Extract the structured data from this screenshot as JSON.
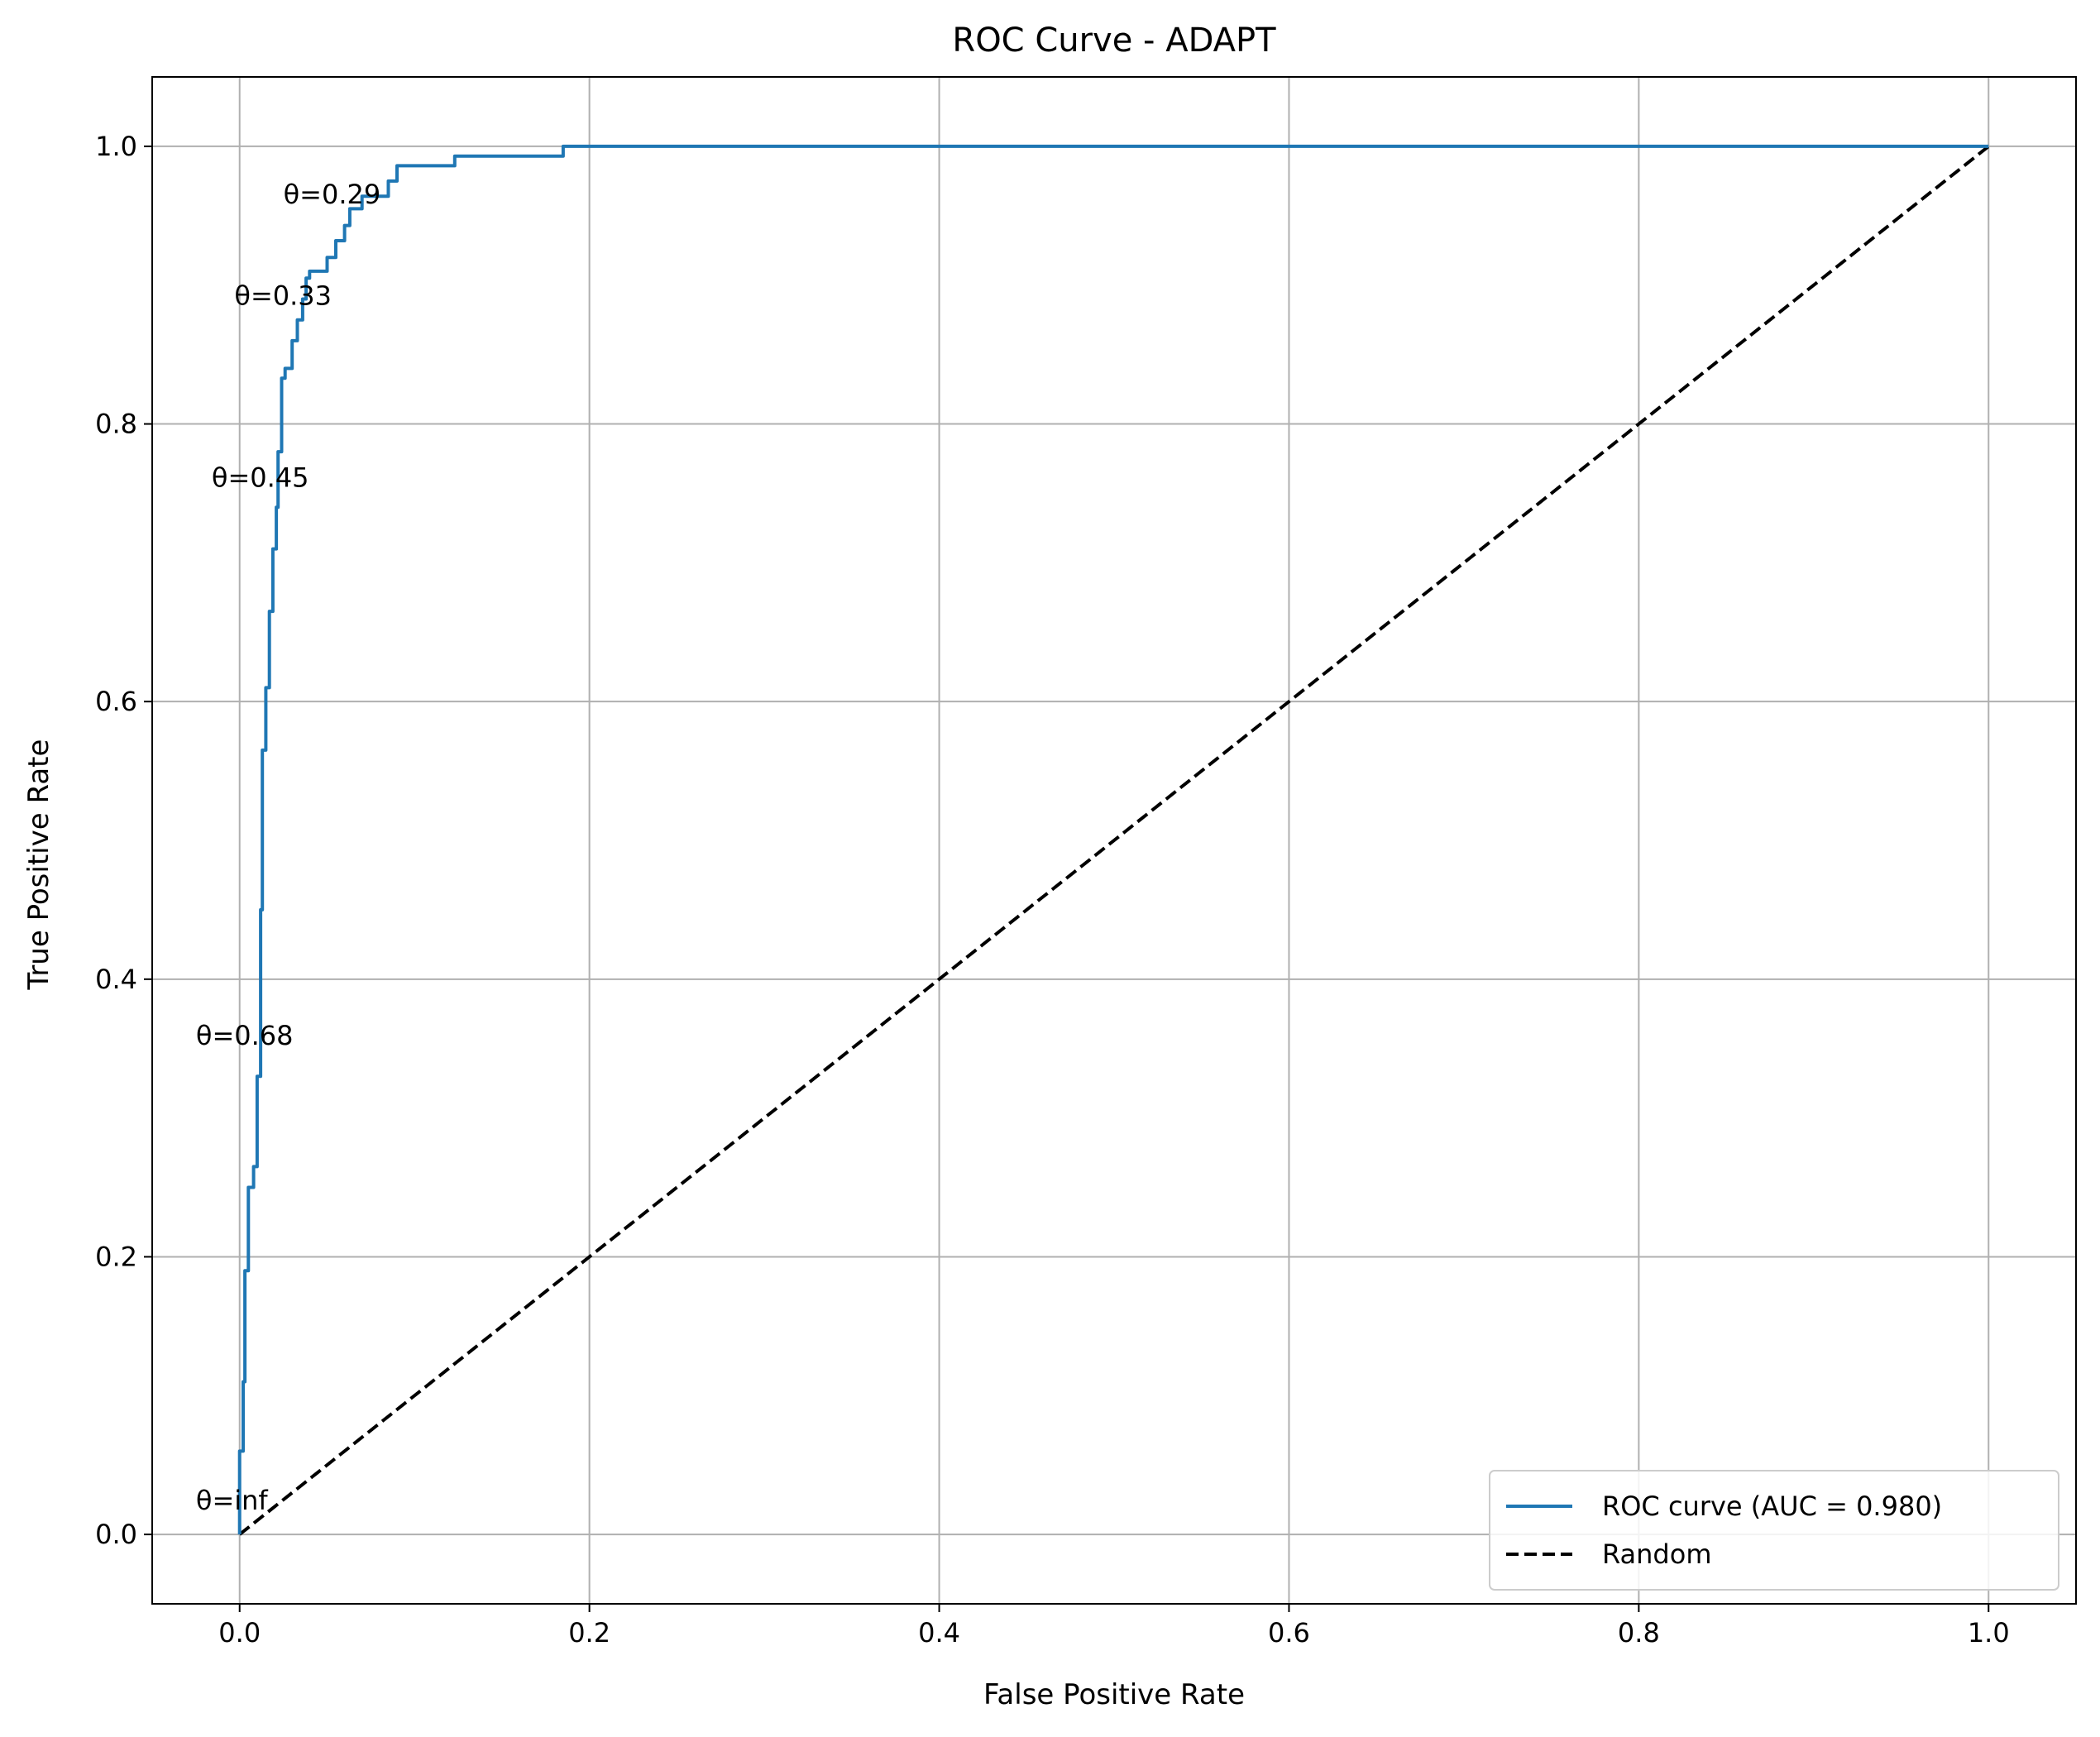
{
  "chart_data": {
    "type": "line",
    "title": "ROC Curve - ADAPT",
    "xlabel": "False Positive Rate",
    "ylabel": "True Positive Rate",
    "xlim": [
      -0.05,
      1.05
    ],
    "ylim": [
      -0.05,
      1.05
    ],
    "grid": true,
    "xticks": [
      0.0,
      0.2,
      0.4,
      0.6,
      0.8,
      1.0
    ],
    "xtick_labels": [
      "0.0",
      "0.2",
      "0.4",
      "0.6",
      "0.8",
      "1.0"
    ],
    "yticks": [
      0.0,
      0.2,
      0.4,
      0.6,
      0.8,
      1.0
    ],
    "ytick_labels": [
      "0.0",
      "0.2",
      "0.4",
      "0.6",
      "0.8",
      "1.0"
    ],
    "legend_position": "lower-right",
    "series": [
      {
        "name": "ROC curve (AUC = 0.980)",
        "color": "#1f77b4",
        "style": "solid",
        "x": [
          0.0,
          0.0,
          0.002,
          0.002,
          0.003,
          0.003,
          0.005,
          0.005,
          0.008,
          0.008,
          0.01,
          0.01,
          0.012,
          0.012,
          0.013,
          0.013,
          0.015,
          0.015,
          0.017,
          0.017,
          0.019,
          0.019,
          0.021,
          0.021,
          0.022,
          0.022,
          0.024,
          0.024,
          0.026,
          0.026,
          0.03,
          0.03,
          0.033,
          0.033,
          0.036,
          0.036,
          0.038,
          0.038,
          0.04,
          0.04,
          0.05,
          0.05,
          0.055,
          0.055,
          0.06,
          0.06,
          0.063,
          0.063,
          0.07,
          0.07,
          0.072,
          0.072,
          0.085,
          0.085,
          0.09,
          0.09,
          0.123,
          0.123,
          0.185,
          0.185,
          1.0
        ],
        "y": [
          0.0,
          0.06,
          0.06,
          0.11,
          0.11,
          0.19,
          0.19,
          0.25,
          0.25,
          0.265,
          0.265,
          0.33,
          0.33,
          0.45,
          0.45,
          0.565,
          0.565,
          0.61,
          0.61,
          0.665,
          0.665,
          0.71,
          0.71,
          0.74,
          0.74,
          0.78,
          0.78,
          0.833,
          0.833,
          0.84,
          0.84,
          0.86,
          0.86,
          0.875,
          0.875,
          0.89,
          0.89,
          0.905,
          0.905,
          0.91,
          0.91,
          0.92,
          0.92,
          0.932,
          0.932,
          0.943,
          0.943,
          0.955,
          0.955,
          0.964,
          0.964,
          0.964,
          0.964,
          0.975,
          0.975,
          0.986,
          0.986,
          0.993,
          0.993,
          1.0,
          1.0
        ]
      },
      {
        "name": "Random",
        "color": "#000000",
        "style": "dashed",
        "x": [
          0.0,
          1.0
        ],
        "y": [
          0.0,
          1.0
        ]
      }
    ],
    "annotations": [
      {
        "text": "θ=inf",
        "x": -0.025,
        "y": 0.025
      },
      {
        "text": "θ=0.68",
        "x": -0.025,
        "y": 0.36
      },
      {
        "text": "θ=0.45",
        "x": -0.016,
        "y": 0.762
      },
      {
        "text": "θ=0.33",
        "x": -0.003,
        "y": 0.893
      },
      {
        "text": "θ=0.29",
        "x": 0.025,
        "y": 0.966
      }
    ]
  }
}
